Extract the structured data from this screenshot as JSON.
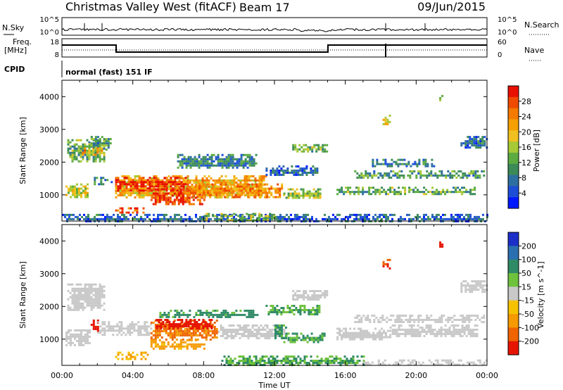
{
  "header": {
    "title": "Christmas Valley West (fitACF)",
    "beam": "Beam 17",
    "date": "09/Jun/2015"
  },
  "top_panels": {
    "nsky_label": "N.Sky",
    "nsearch_label": "N.Search",
    "nsky_ticks": [
      "10^5",
      "10^0"
    ],
    "nsearch_ticks": [
      "10^5",
      "10^0"
    ],
    "freq_label_line1": "Freq.",
    "freq_label_line2": "[MHz]",
    "freq_ticks": [
      "18",
      "8"
    ],
    "nave_label": "Nave",
    "nave_ticks": [
      "60",
      "0"
    ],
    "cpid_label": "CPID",
    "cpid_text": "normal (fast) 151 IF"
  },
  "colors": {
    "power": [
      "#0018ff",
      "#1c4fd6",
      "#2d6fa0",
      "#3b8a57",
      "#5cab40",
      "#a6c936",
      "#f0c020",
      "#f5a000",
      "#f47a00",
      "#ef4a00",
      "#e81000"
    ],
    "velocity": [
      "#1b2fc8",
      "#2a6fb0",
      "#2f8a66",
      "#6ec23c",
      "#c8c8c8",
      "#f6c200",
      "#f59a00",
      "#ef6400",
      "#e61400"
    ],
    "trace": "#000000"
  },
  "chart_data": [
    {
      "type": "heatmap",
      "name_key": "power-panel",
      "ylabel": "Slant Range [km]",
      "xlabel": "Time UT",
      "x_ticks": [
        "00:00",
        "04:00",
        "08:00",
        "12:00",
        "16:00",
        "20:00",
        "00:00"
      ],
      "xlim_hours": [
        0,
        24
      ],
      "ylim": [
        200,
        4500
      ],
      "y_ticks": [
        1000,
        2000,
        3000,
        4000
      ],
      "colorbar": {
        "label": "Power [dB]",
        "ticks": [
          "4",
          "8",
          "12",
          "16",
          "20",
          "24",
          "28"
        ],
        "range": [
          0,
          30
        ]
      },
      "patches": [
        {
          "t0": 0.2,
          "t1": 1.6,
          "r0": 900,
          "r1": 1350,
          "v": 16
        },
        {
          "t0": 0.3,
          "t1": 2.4,
          "r0": 2050,
          "r1": 2700,
          "v": 12
        },
        {
          "t0": 1.0,
          "t1": 2.2,
          "r0": 2200,
          "r1": 2450,
          "v": 20
        },
        {
          "t0": 1.5,
          "t1": 2.8,
          "r0": 2400,
          "r1": 2800,
          "v": 10
        },
        {
          "t0": 1.8,
          "t1": 2.8,
          "r0": 1350,
          "r1": 1550,
          "v": 8
        },
        {
          "t0": 3.0,
          "t1": 11.5,
          "r0": 900,
          "r1": 1600,
          "v": 20
        },
        {
          "t0": 3.0,
          "t1": 7.0,
          "r0": 1150,
          "r1": 1550,
          "v": 28
        },
        {
          "t0": 5.0,
          "t1": 8.0,
          "r0": 700,
          "r1": 1200,
          "v": 26
        },
        {
          "t0": 7.0,
          "t1": 12.5,
          "r0": 950,
          "r1": 1350,
          "v": 22
        },
        {
          "t0": 12.5,
          "t1": 14.8,
          "r0": 900,
          "r1": 1200,
          "v": 14
        },
        {
          "t0": 3.0,
          "t1": 4.6,
          "r0": 450,
          "r1": 620,
          "v": 26
        },
        {
          "t0": 6.5,
          "t1": 11.0,
          "r0": 1800,
          "r1": 2250,
          "v": 8
        },
        {
          "t0": 11.5,
          "t1": 14.5,
          "r0": 1600,
          "r1": 1900,
          "v": 6
        },
        {
          "t0": 13.0,
          "t1": 15.0,
          "r0": 2300,
          "r1": 2550,
          "v": 12
        },
        {
          "t0": 15.5,
          "t1": 23.5,
          "r0": 1000,
          "r1": 1250,
          "v": 12
        },
        {
          "t0": 16.5,
          "t1": 23.8,
          "r0": 1500,
          "r1": 1750,
          "v": 10
        },
        {
          "t0": 17.5,
          "t1": 21.0,
          "r0": 1850,
          "r1": 2100,
          "v": 8
        },
        {
          "t0": 22.5,
          "t1": 24.0,
          "r0": 2450,
          "r1": 2800,
          "v": 6
        },
        {
          "t0": 0.0,
          "t1": 24.0,
          "r0": 200,
          "r1": 420,
          "v": 6
        },
        {
          "t0": 8.0,
          "t1": 12.0,
          "r0": 250,
          "r1": 450,
          "v": 14
        },
        {
          "t0": 18.1,
          "t1": 18.5,
          "r0": 3150,
          "r1": 3450,
          "v": 18
        },
        {
          "t0": 21.3,
          "t1": 21.5,
          "r0": 3850,
          "r1": 4050,
          "v": 16
        }
      ]
    },
    {
      "type": "heatmap",
      "name_key": "velocity-panel",
      "ylabel": "Slant Range [km]",
      "xlabel": "Time UT",
      "x_ticks": [
        "00:00",
        "04:00",
        "08:00",
        "12:00",
        "16:00",
        "20:00",
        "00:00"
      ],
      "xlim_hours": [
        0,
        24
      ],
      "ylim": [
        200,
        4500
      ],
      "y_ticks": [
        1000,
        2000,
        3000,
        4000
      ],
      "colorbar": {
        "label": "Velocity [m s^-1]",
        "ticks": [
          "200",
          "100",
          "50",
          "15",
          "-15",
          "-50",
          "-100",
          "-200"
        ],
        "range": [
          -250,
          250
        ]
      },
      "patches": [
        {
          "t0": 0.2,
          "t1": 1.6,
          "r0": 800,
          "r1": 1300,
          "v": 0
        },
        {
          "t0": 0.3,
          "t1": 2.4,
          "r0": 1900,
          "r1": 2700,
          "v": 0
        },
        {
          "t0": 1.5,
          "t1": 2.0,
          "r0": 1250,
          "r1": 1600,
          "v": -220
        },
        {
          "t0": 2.0,
          "t1": 5.0,
          "r0": 1150,
          "r1": 1550,
          "v": 0
        },
        {
          "t0": 5.0,
          "t1": 8.8,
          "r0": 1000,
          "r1": 1600,
          "v": -80
        },
        {
          "t0": 5.3,
          "t1": 8.5,
          "r0": 1300,
          "r1": 1620,
          "v": -180
        },
        {
          "t0": 5.0,
          "t1": 8.0,
          "r0": 700,
          "r1": 1000,
          "v": -40
        },
        {
          "t0": 8.8,
          "t1": 12.5,
          "r0": 1000,
          "r1": 1450,
          "v": 0
        },
        {
          "t0": 12.0,
          "t1": 12.6,
          "r0": 1000,
          "r1": 1450,
          "v": 40
        },
        {
          "t0": 12.5,
          "t1": 14.8,
          "r0": 900,
          "r1": 1200,
          "v": 30
        },
        {
          "t0": 3.0,
          "t1": 5.0,
          "r0": 420,
          "r1": 620,
          "v": -30
        },
        {
          "t0": 5.5,
          "t1": 11.0,
          "r0": 1650,
          "r1": 1900,
          "v": 40
        },
        {
          "t0": 11.5,
          "t1": 14.5,
          "r0": 1750,
          "r1": 2050,
          "v": 30
        },
        {
          "t0": 13.0,
          "t1": 15.0,
          "r0": 2200,
          "r1": 2500,
          "v": 0
        },
        {
          "t0": 15.5,
          "t1": 18.5,
          "r0": 1000,
          "r1": 1350,
          "v": 0
        },
        {
          "t0": 18.5,
          "t1": 23.5,
          "r0": 1100,
          "r1": 1450,
          "v": 0
        },
        {
          "t0": 16.5,
          "t1": 23.8,
          "r0": 1500,
          "r1": 1750,
          "v": 0
        },
        {
          "t0": 22.5,
          "t1": 24.0,
          "r0": 2450,
          "r1": 2800,
          "v": 0
        },
        {
          "t0": 9.0,
          "t1": 17.0,
          "r0": 200,
          "r1": 500,
          "v": 30
        },
        {
          "t0": 17.0,
          "t1": 24.0,
          "r0": 200,
          "r1": 380,
          "v": 0
        },
        {
          "t0": 18.1,
          "t1": 18.5,
          "r0": 3150,
          "r1": 3450,
          "v": -150
        },
        {
          "t0": 21.3,
          "t1": 21.5,
          "r0": 3850,
          "r1": 4050,
          "v": -200
        }
      ]
    }
  ]
}
